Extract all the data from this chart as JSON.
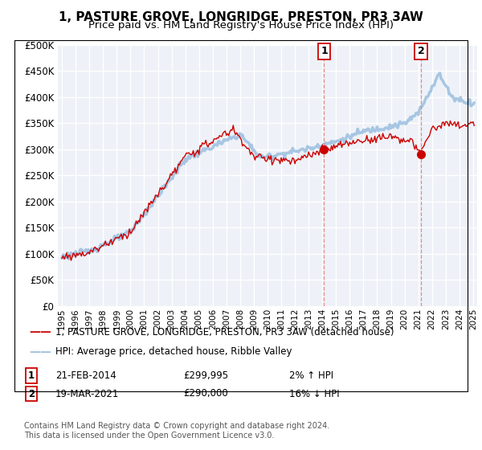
{
  "title": "1, PASTURE GROVE, LONGRIDGE, PRESTON, PR3 3AW",
  "subtitle": "Price paid vs. HM Land Registry's House Price Index (HPI)",
  "legend_line1": "1, PASTURE GROVE, LONGRIDGE, PRESTON, PR3 3AW (detached house)",
  "legend_line2": "HPI: Average price, detached house, Ribble Valley",
  "table_row1": [
    "1",
    "21-FEB-2014",
    "£299,995",
    "2% ↑ HPI"
  ],
  "table_row2": [
    "2",
    "19-MAR-2021",
    "£290,000",
    "16% ↓ HPI"
  ],
  "footnote": "Contains HM Land Registry data © Crown copyright and database right 2024.\nThis data is licensed under the Open Government Licence v3.0.",
  "hpi_color": "#9bbfe0",
  "price_color": "#cc0000",
  "marker_color": "#cc0000",
  "vline_color": "#e08080",
  "ymin": 0,
  "ymax": 500000,
  "ytick_step": 50000,
  "sale1_year": 2014.13,
  "sale1_price": 299995,
  "sale2_year": 2021.21,
  "sale2_price": 290000,
  "background_color": "#eef2f8",
  "title_fontsize": 11,
  "subtitle_fontsize": 9.5
}
